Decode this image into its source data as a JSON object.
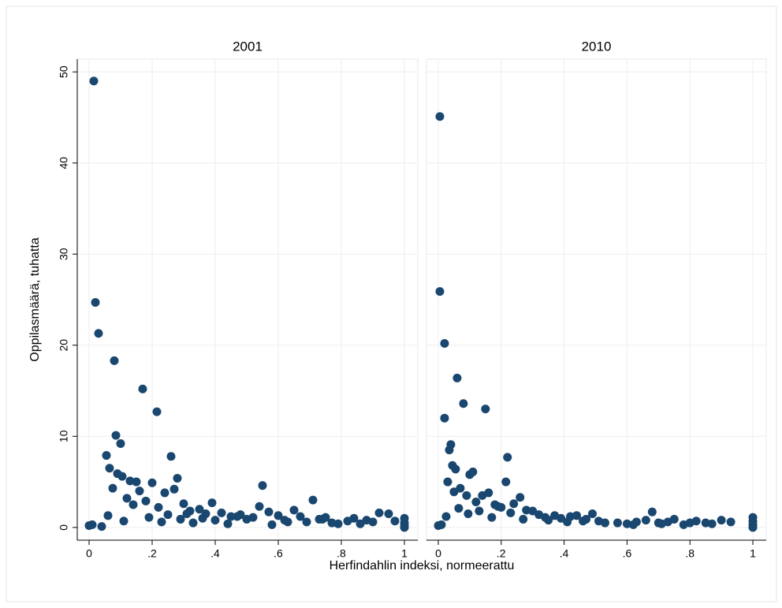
{
  "chart_data": [
    {
      "type": "scatter",
      "title": "2001",
      "color": "#1a476f",
      "grid": true,
      "xlim": [
        -0.0375,
        1.0425
      ],
      "ylim": [
        -1.4,
        51.4
      ],
      "xticks": [
        0,
        {
          "value": 0.2,
          "label": ".2"
        },
        {
          "value": 0.4,
          "label": ".4"
        },
        {
          "value": 0.6,
          "label": ".6"
        },
        {
          "value": 0.8,
          "label": ".8"
        },
        1
      ],
      "yticks": [
        0,
        10,
        20,
        30,
        40,
        50
      ],
      "x": [
        0.015,
        0.02,
        0.03,
        0.08,
        0.17,
        0.215,
        0.085,
        0.1,
        0.055,
        0.26,
        0.065,
        0.09,
        0.105,
        0.28,
        0.2,
        0.55,
        0.15,
        0.13,
        0.075,
        0.16,
        0.27,
        0.71,
        0.39,
        0.54,
        0.12,
        0.14,
        0.18,
        0.22,
        0.24,
        0.3,
        0.32,
        0.35,
        0.37,
        0.42,
        0.45,
        0.48,
        0.5,
        0.52,
        0.57,
        0.6,
        0.62,
        0.65,
        0.67,
        0.69,
        0.73,
        0.75,
        0.77,
        0.82,
        0.84,
        0.86,
        0.88,
        0.9,
        0.92,
        0.95,
        1,
        1,
        1,
        1,
        0.0,
        0.01,
        0.04,
        0.06,
        0.11,
        0.19,
        0.23,
        0.25,
        0.29,
        0.31,
        0.33,
        0.36,
        0.4,
        0.44,
        0.47,
        0.58,
        0.63,
        0.74,
        0.79,
        0.97
      ],
      "values": [
        49,
        24.7,
        21.3,
        18.3,
        15.2,
        12.7,
        10.1,
        9.2,
        7.9,
        7.8,
        6.5,
        5.9,
        5.6,
        5.4,
        4.9,
        4.6,
        5,
        5.1,
        4.3,
        4,
        4.2,
        3,
        2.7,
        2.3,
        3.2,
        2.5,
        2.9,
        2.2,
        3.8,
        2.6,
        1.8,
        2,
        1.5,
        1.6,
        1.2,
        1.4,
        0.9,
        1.1,
        1.7,
        1.3,
        0.8,
        1.9,
        1.2,
        0.6,
        0.9,
        1.1,
        0.5,
        0.7,
        1,
        0.4,
        0.8,
        0.6,
        1.6,
        1.5,
        1,
        0.5,
        0.2,
        0,
        0.2,
        0.3,
        0.1,
        1.3,
        0.7,
        1.1,
        0.6,
        1.4,
        0.9,
        1.5,
        0.5,
        1,
        0.8,
        0.4,
        1.2,
        0.3,
        0.6,
        0.9,
        0.4,
        0.7
      ]
    },
    {
      "type": "scatter",
      "title": "2010",
      "color": "#1a476f",
      "grid": true,
      "xlim": [
        -0.0375,
        1.0425
      ],
      "ylim": [
        -1.4,
        51.4
      ],
      "xticks": [
        0,
        {
          "value": 0.2,
          "label": ".2"
        },
        {
          "value": 0.4,
          "label": ".4"
        },
        {
          "value": 0.6,
          "label": ".6"
        },
        {
          "value": 0.8,
          "label": ".8"
        },
        1
      ],
      "yticks": [
        0,
        10,
        20,
        30,
        40,
        50
      ],
      "x": [
        0.005,
        0.005,
        0.02,
        0.06,
        0.08,
        0.15,
        0.02,
        0.04,
        0.035,
        0.22,
        0.045,
        0.055,
        0.215,
        0.1,
        0.11,
        0.03,
        0.68,
        0.49,
        0.37,
        0.05,
        0.07,
        0.09,
        0.12,
        0.14,
        0.16,
        0.18,
        0.2,
        0.24,
        0.26,
        0.28,
        0.3,
        0.32,
        0.34,
        0.39,
        0.42,
        0.44,
        0.47,
        0.51,
        0.57,
        0.6,
        0.63,
        0.66,
        0.7,
        0.73,
        0.75,
        0.78,
        0.8,
        0.82,
        0.87,
        0.9,
        0.93,
        1,
        1,
        1,
        1,
        0.0,
        0.01,
        0.025,
        0.065,
        0.095,
        0.13,
        0.17,
        0.19,
        0.23,
        0.27,
        0.35,
        0.41,
        0.46,
        0.53,
        0.62,
        0.71,
        0.85
      ],
      "values": [
        45.1,
        25.9,
        20.2,
        16.4,
        13.6,
        13,
        12,
        9.1,
        8.5,
        7.7,
        6.8,
        6.4,
        5,
        5.8,
        6.1,
        5,
        1.7,
        1.5,
        1.3,
        3.9,
        4.3,
        3.5,
        2.8,
        3.5,
        3.8,
        2.5,
        2.2,
        2.6,
        3.3,
        1.9,
        1.8,
        1.4,
        1.1,
        1.0,
        1.2,
        1.3,
        0.9,
        0.7,
        0.5,
        0.4,
        0.6,
        0.8,
        0.5,
        0.6,
        0.9,
        0.3,
        0.5,
        0.7,
        0.4,
        0.8,
        0.6,
        1.1,
        0.7,
        0.3,
        0,
        0.2,
        0.3,
        1.2,
        2.1,
        1.5,
        1.8,
        1.1,
        2.3,
        1.6,
        0.9,
        0.8,
        0.6,
        0.7,
        0.5,
        0.3,
        0.4,
        0.5
      ]
    }
  ],
  "shared_labels": {
    "x": "Herfindahlin indeksi, normeerattu",
    "y": "Oppilasmäärä, tuhatta"
  }
}
